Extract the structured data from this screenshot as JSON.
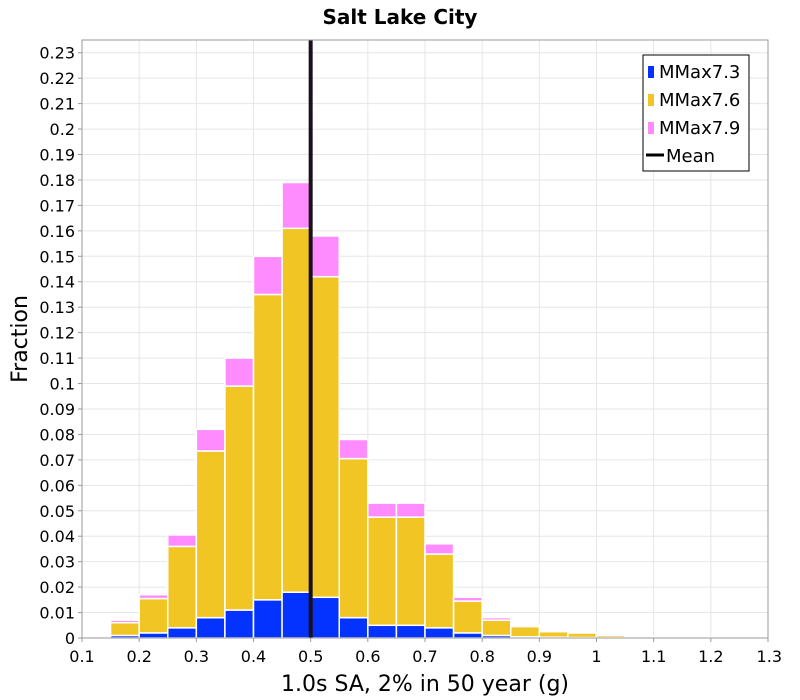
{
  "colors": {
    "mmax73": "#0433ff",
    "mmax76": "#f1c524",
    "mmax79": "#ff8cff",
    "mean": "#000000",
    "grid": "#e6e6e6",
    "bar_border": "#ffffff"
  },
  "chart_data": {
    "type": "bar",
    "stacked": true,
    "title": "Salt Lake City",
    "xlabel": "1.0s SA, 2% in 50 year (g)",
    "ylabel": "Fraction",
    "xlim": [
      0.1,
      1.3
    ],
    "ylim": [
      0,
      0.235
    ],
    "bin_width": 0.05,
    "x": [
      0.125,
      0.175,
      0.225,
      0.275,
      0.325,
      0.375,
      0.425,
      0.475,
      0.525,
      0.575,
      0.625,
      0.675,
      0.725,
      0.775,
      0.825,
      0.875,
      0.925,
      0.975,
      1.025,
      1.075,
      1.125,
      1.175,
      1.225,
      1.275
    ],
    "series": [
      {
        "name": "MMax7.3",
        "color_key": "mmax73",
        "values": [
          0.0,
          0.001,
          0.002,
          0.004,
          0.008,
          0.011,
          0.015,
          0.018,
          0.016,
          0.008,
          0.005,
          0.005,
          0.004,
          0.002,
          0.001,
          0.0005,
          0.0003,
          0.0002,
          0.0001,
          0,
          0,
          0,
          0,
          0
        ]
      },
      {
        "name": "MMax7.6",
        "color_key": "mmax76",
        "values": [
          0.0006,
          0.005,
          0.0135,
          0.032,
          0.0655,
          0.088,
          0.12,
          0.143,
          0.126,
          0.0625,
          0.0425,
          0.0425,
          0.029,
          0.0125,
          0.006,
          0.004,
          0.0022,
          0.0018,
          0.0009,
          0.0004,
          0.0003,
          0.0003,
          0.0003,
          0.0003
        ]
      },
      {
        "name": "MMax7.9",
        "color_key": "mmax79",
        "values": [
          0.0,
          0.001,
          0.0015,
          0.0045,
          0.0085,
          0.011,
          0.015,
          0.018,
          0.016,
          0.0075,
          0.0055,
          0.0055,
          0.004,
          0.0015,
          0.001,
          0.0005,
          0.0002,
          0.0002,
          0.0001,
          0.0001,
          0,
          0,
          0,
          0
        ]
      }
    ],
    "mean": {
      "name": "Mean",
      "x": 0.5,
      "color_key": "mean"
    },
    "legend_position": "top-right",
    "legend": [
      "MMax7.3",
      "MMax7.6",
      "MMax7.9",
      "Mean"
    ],
    "x_ticks": [
      "0.1",
      "0.2",
      "0.3",
      "0.4",
      "0.5",
      "0.6",
      "0.7",
      "0.8",
      "0.9",
      "1",
      "1.1",
      "1.2",
      "1.3"
    ],
    "x_tick_values": [
      0.1,
      0.2,
      0.3,
      0.4,
      0.5,
      0.6,
      0.7,
      0.8,
      0.9,
      1.0,
      1.1,
      1.2,
      1.3
    ],
    "y_ticks": [
      "0",
      "0.01",
      "0.02",
      "0.03",
      "0.04",
      "0.05",
      "0.06",
      "0.07",
      "0.08",
      "0.09",
      "0.1",
      "0.11",
      "0.12",
      "0.13",
      "0.14",
      "0.15",
      "0.16",
      "0.17",
      "0.18",
      "0.19",
      "0.2",
      "0.21",
      "0.22",
      "0.23"
    ],
    "y_tick_values": [
      0,
      0.01,
      0.02,
      0.03,
      0.04,
      0.05,
      0.06,
      0.07,
      0.08,
      0.09,
      0.1,
      0.11,
      0.12,
      0.13,
      0.14,
      0.15,
      0.16,
      0.17,
      0.18,
      0.19,
      0.2,
      0.21,
      0.22,
      0.23
    ],
    "grid": true
  }
}
